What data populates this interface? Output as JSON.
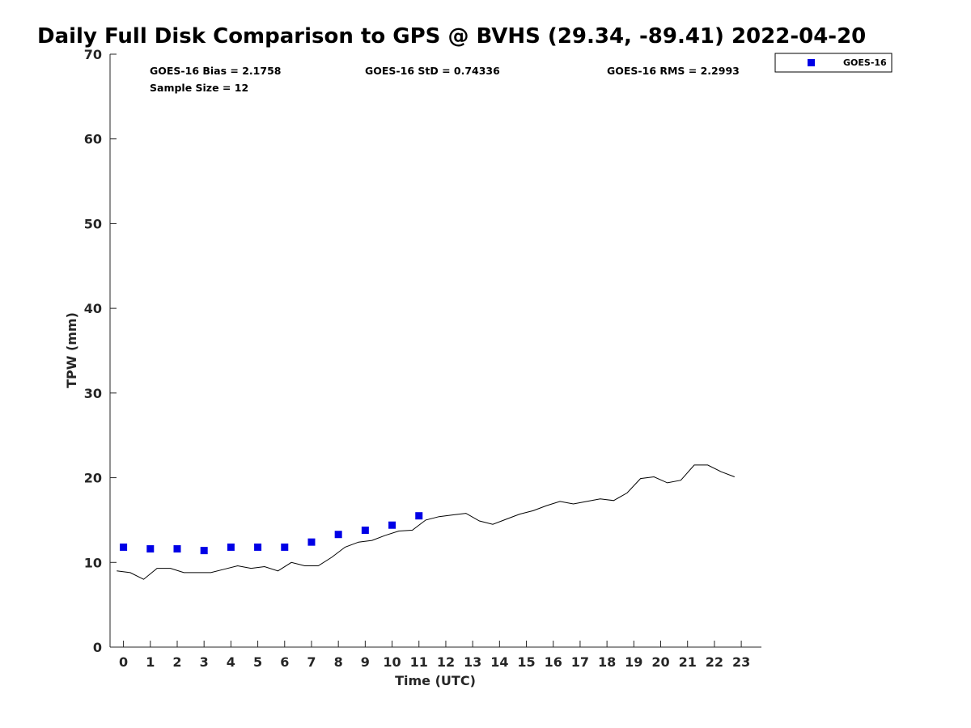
{
  "title": "Daily Full Disk Comparison to GPS @ BVHS (29.34, -89.41) 2022-04-20",
  "stats": {
    "bias": "GOES-16 Bias = 2.1758",
    "std": "GOES-16 StD = 0.74336",
    "rms": "GOES-16 RMS = 2.2993",
    "sample": "Sample Size = 12"
  },
  "legend": {
    "label": "GOES-16",
    "color": "#0000e6"
  },
  "chart_data": {
    "type": "line",
    "xlabel": "Time (UTC)",
    "ylabel": "TPW (mm)",
    "xlim": [
      -0.5,
      23.75
    ],
    "ylim": [
      0,
      70
    ],
    "xticks": [
      0,
      1,
      2,
      3,
      4,
      5,
      6,
      7,
      8,
      9,
      10,
      11,
      12,
      13,
      14,
      15,
      16,
      17,
      18,
      19,
      20,
      21,
      22,
      23
    ],
    "yticks": [
      0,
      10,
      20,
      30,
      40,
      50,
      60,
      70
    ],
    "grid": false,
    "legend_position": "outside top-right",
    "series": [
      {
        "name": "GOES-16",
        "style": "markers",
        "color": "#0000e6",
        "x": [
          0,
          1,
          2,
          3,
          4,
          5,
          6,
          7,
          8,
          9,
          10,
          11
        ],
        "y": [
          11.8,
          11.6,
          11.6,
          11.4,
          11.8,
          11.8,
          11.8,
          12.4,
          13.3,
          13.8,
          14.4,
          15.5
        ]
      },
      {
        "style": "line",
        "color": "#000000",
        "x": [
          -0.25,
          0.25,
          0.75,
          1.25,
          1.75,
          2.25,
          2.75,
          3.25,
          3.75,
          4.25,
          4.75,
          5.25,
          5.75,
          6.25,
          6.75,
          7.25,
          7.75,
          8.25,
          8.75,
          9.25,
          9.75,
          10.25,
          10.75,
          11.25,
          11.75,
          12.25,
          12.75,
          13.25,
          13.75,
          14.25,
          14.75,
          15.25,
          15.75,
          16.25,
          16.75,
          17.25,
          17.75,
          18.25,
          18.75,
          19.25,
          19.75,
          20.25,
          20.75,
          21.25,
          21.75,
          22.25,
          22.75
        ],
        "y": [
          9.0,
          8.8,
          8.0,
          9.3,
          9.3,
          8.8,
          8.8,
          8.8,
          9.2,
          9.6,
          9.3,
          9.5,
          9.0,
          10.0,
          9.6,
          9.6,
          10.6,
          11.8,
          12.4,
          12.6,
          13.2,
          13.7,
          13.8,
          15.0,
          15.4,
          15.6,
          15.8,
          14.9,
          14.5,
          15.1,
          15.7,
          16.1,
          16.7,
          17.2,
          16.9,
          17.2,
          17.5,
          17.3,
          18.2,
          19.9,
          20.1,
          19.4,
          19.7,
          21.5,
          21.5,
          20.7,
          20.1
        ]
      }
    ]
  }
}
